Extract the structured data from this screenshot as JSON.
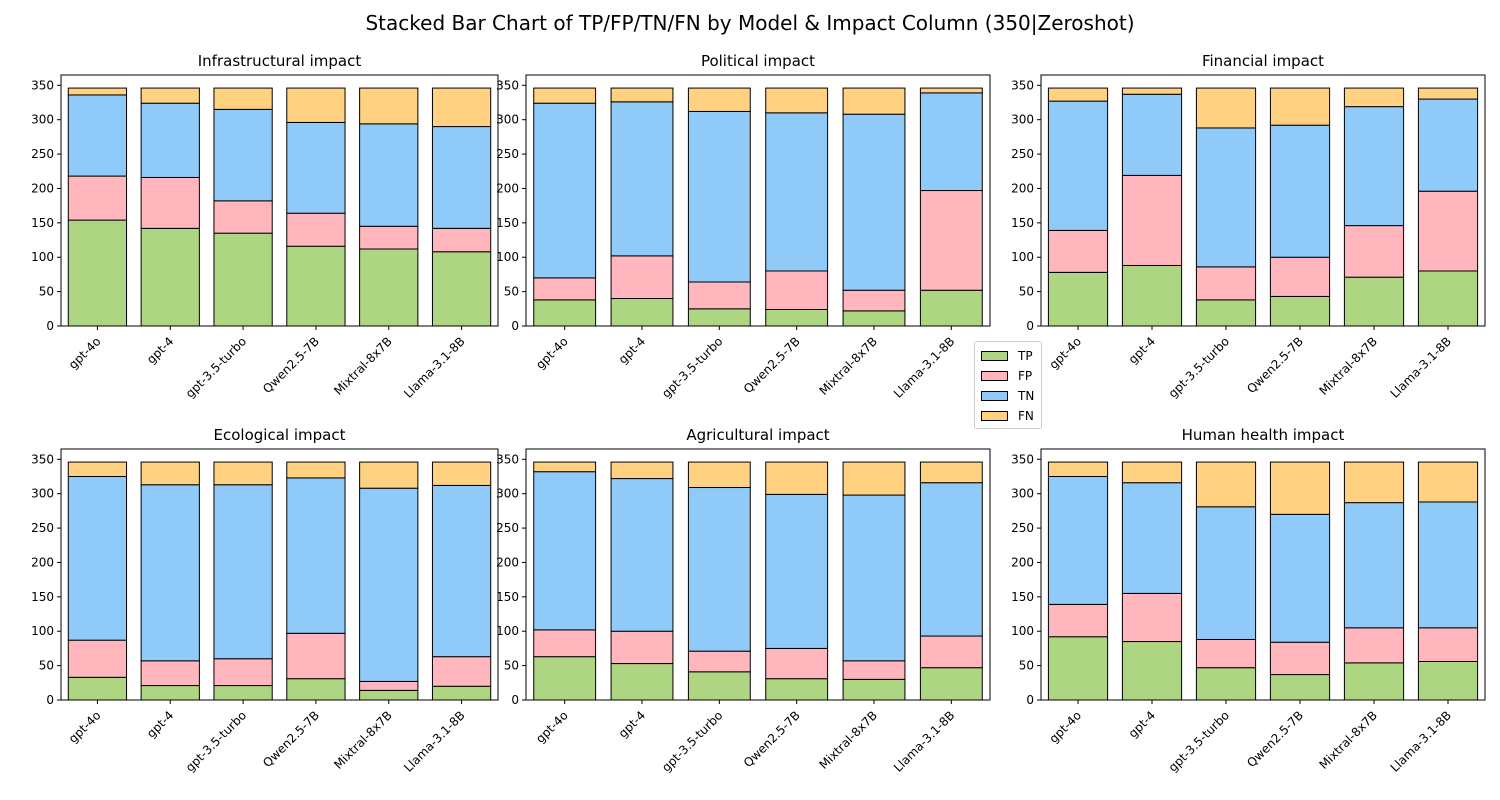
{
  "title": "Stacked Bar Chart of TP/FP/TN/FN by Model & Impact Column (350|Zeroshot)",
  "legend": [
    {
      "key": "TP",
      "label": "TP",
      "color": "#aed581"
    },
    {
      "key": "FP",
      "label": "FP",
      "color": "#ffb7bd"
    },
    {
      "key": "TN",
      "label": "TN",
      "color": "#90caf9"
    },
    {
      "key": "FN",
      "label": "FN",
      "color": "#ffd180"
    }
  ],
  "chart_data": [
    {
      "type": "bar",
      "stacked": true,
      "title": "Infrastructural impact",
      "categories": [
        "gpt-4o",
        "gpt-4",
        "gpt-3.5-turbo",
        "Qwen2.5-7B",
        "Mixtral-8x7B",
        "Llama-3.1-8B"
      ],
      "yticks": [
        0,
        50,
        100,
        150,
        200,
        250,
        300,
        350
      ],
      "ylim": [
        0,
        365
      ],
      "series": [
        {
          "name": "TP",
          "values": [
            154,
            142,
            135,
            116,
            112,
            108
          ]
        },
        {
          "name": "FP",
          "values": [
            64,
            74,
            47,
            48,
            33,
            34
          ]
        },
        {
          "name": "TN",
          "values": [
            118,
            108,
            133,
            132,
            149,
            148
          ]
        },
        {
          "name": "FN",
          "values": [
            10,
            22,
            31,
            50,
            52,
            56
          ]
        }
      ]
    },
    {
      "type": "bar",
      "stacked": true,
      "title": "Political impact",
      "categories": [
        "gpt-4o",
        "gpt-4",
        "gpt-3.5-turbo",
        "Qwen2.5-7B",
        "Mixtral-8x7B",
        "Llama-3.1-8B"
      ],
      "yticks": [
        0,
        50,
        100,
        150,
        200,
        250,
        300,
        350
      ],
      "ylim": [
        0,
        365
      ],
      "series": [
        {
          "name": "TP",
          "values": [
            38,
            40,
            25,
            24,
            22,
            52
          ]
        },
        {
          "name": "FP",
          "values": [
            32,
            62,
            39,
            56,
            30,
            145
          ]
        },
        {
          "name": "TN",
          "values": [
            254,
            224,
            248,
            230,
            256,
            142
          ]
        },
        {
          "name": "FN",
          "values": [
            22,
            20,
            34,
            36,
            38,
            7
          ]
        }
      ]
    },
    {
      "type": "bar",
      "stacked": true,
      "title": "Financial impact",
      "categories": [
        "gpt-4o",
        "gpt-4",
        "gpt-3.5-turbo",
        "Qwen2.5-7B",
        "Mixtral-8x7B",
        "Llama-3.1-8B"
      ],
      "yticks": [
        0,
        50,
        100,
        150,
        200,
        250,
        300,
        350
      ],
      "ylim": [
        0,
        365
      ],
      "series": [
        {
          "name": "TP",
          "values": [
            78,
            88,
            38,
            43,
            71,
            80
          ]
        },
        {
          "name": "FP",
          "values": [
            61,
            131,
            48,
            57,
            75,
            116
          ]
        },
        {
          "name": "TN",
          "values": [
            188,
            118,
            202,
            192,
            173,
            134
          ]
        },
        {
          "name": "FN",
          "values": [
            19,
            9,
            58,
            54,
            27,
            16
          ]
        }
      ]
    },
    {
      "type": "bar",
      "stacked": true,
      "title": "Ecological impact",
      "categories": [
        "gpt-4o",
        "gpt-4",
        "gpt-3.5-turbo",
        "Qwen2.5-7B",
        "Mixtral-8x7B",
        "Llama-3.1-8B"
      ],
      "yticks": [
        0,
        50,
        100,
        150,
        200,
        250,
        300,
        350
      ],
      "ylim": [
        0,
        365
      ],
      "series": [
        {
          "name": "TP",
          "values": [
            33,
            21,
            21,
            31,
            14,
            20
          ]
        },
        {
          "name": "FP",
          "values": [
            54,
            36,
            39,
            66,
            13,
            43
          ]
        },
        {
          "name": "TN",
          "values": [
            238,
            256,
            253,
            226,
            281,
            249
          ]
        },
        {
          "name": "FN",
          "values": [
            21,
            33,
            33,
            23,
            38,
            34
          ]
        }
      ]
    },
    {
      "type": "bar",
      "stacked": true,
      "title": "Agricultural impact",
      "categories": [
        "gpt-4o",
        "gpt-4",
        "gpt-3.5-turbo",
        "Qwen2.5-7B",
        "Mixtral-8x7B",
        "Llama-3.1-8B"
      ],
      "yticks": [
        0,
        50,
        100,
        150,
        200,
        250,
        300,
        350
      ],
      "ylim": [
        0,
        365
      ],
      "series": [
        {
          "name": "TP",
          "values": [
            63,
            53,
            41,
            31,
            30,
            47
          ]
        },
        {
          "name": "FP",
          "values": [
            39,
            47,
            30,
            44,
            27,
            46
          ]
        },
        {
          "name": "TN",
          "values": [
            230,
            222,
            238,
            224,
            241,
            223
          ]
        },
        {
          "name": "FN",
          "values": [
            14,
            24,
            37,
            47,
            48,
            30
          ]
        }
      ]
    },
    {
      "type": "bar",
      "stacked": true,
      "title": "Human health impact",
      "categories": [
        "gpt-4o",
        "gpt-4",
        "gpt-3.5-turbo",
        "Qwen2.5-7B",
        "Mixtral-8x7B",
        "Llama-3.1-8B"
      ],
      "yticks": [
        0,
        50,
        100,
        150,
        200,
        250,
        300,
        350
      ],
      "ylim": [
        0,
        365
      ],
      "series": [
        {
          "name": "TP",
          "values": [
            92,
            85,
            47,
            37,
            54,
            56
          ]
        },
        {
          "name": "FP",
          "values": [
            47,
            70,
            41,
            47,
            51,
            49
          ]
        },
        {
          "name": "TN",
          "values": [
            186,
            161,
            193,
            186,
            182,
            183
          ]
        },
        {
          "name": "FN",
          "values": [
            21,
            30,
            65,
            76,
            59,
            58
          ]
        }
      ]
    }
  ]
}
